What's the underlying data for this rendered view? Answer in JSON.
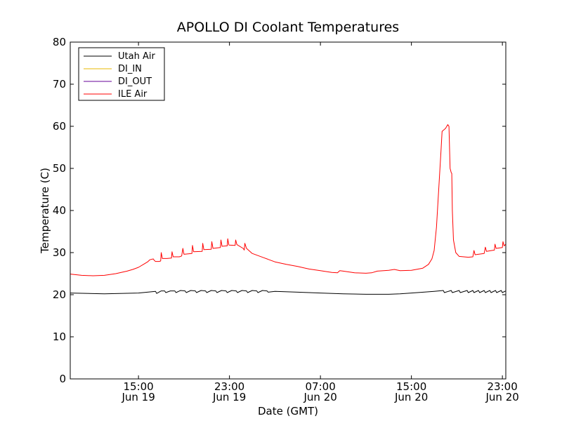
{
  "chart_data": {
    "type": "line",
    "title": "APOLLO DI Coolant Temperatures",
    "xlabel": "Date (GMT)",
    "ylabel": "Temperature (C)",
    "x_unit": "hours since Jun 19 09:00 GMT",
    "xlim": [
      0,
      38.3
    ],
    "ylim": [
      0,
      80
    ],
    "yticks": [
      0,
      10,
      20,
      30,
      40,
      50,
      60,
      70,
      80
    ],
    "xticks": [
      {
        "x": 6,
        "time": "15:00",
        "date": "Jun 19"
      },
      {
        "x": 14,
        "time": "23:00",
        "date": "Jun 19"
      },
      {
        "x": 22,
        "time": "07:00",
        "date": "Jun 20"
      },
      {
        "x": 30,
        "time": "15:00",
        "date": "Jun 20"
      },
      {
        "x": 38,
        "time": "23:00",
        "date": "Jun 20"
      }
    ],
    "legend_position": "top-left",
    "series": [
      {
        "name": "Utah Air",
        "color": "#000000",
        "points": [
          [
            0,
            20.4
          ],
          [
            3,
            20.2
          ],
          [
            6,
            20.4
          ],
          [
            7.5,
            20.8
          ],
          [
            7.6,
            20.3
          ],
          [
            8,
            20.9
          ],
          [
            8.3,
            20.9
          ],
          [
            8.4,
            20.5
          ],
          [
            8.8,
            20.9
          ],
          [
            9.2,
            20.9
          ],
          [
            9.3,
            20.5
          ],
          [
            9.7,
            21.0
          ],
          [
            10.1,
            20.9
          ],
          [
            10.2,
            20.5
          ],
          [
            10.6,
            21.0
          ],
          [
            11.0,
            20.9
          ],
          [
            11.1,
            20.5
          ],
          [
            11.5,
            21.0
          ],
          [
            11.9,
            20.9
          ],
          [
            12.0,
            20.5
          ],
          [
            12.4,
            21.0
          ],
          [
            12.8,
            20.9
          ],
          [
            12.9,
            20.5
          ],
          [
            13.3,
            21.0
          ],
          [
            13.7,
            20.9
          ],
          [
            13.8,
            20.5
          ],
          [
            14.2,
            21.0
          ],
          [
            14.6,
            20.9
          ],
          [
            14.7,
            20.5
          ],
          [
            15.1,
            21.0
          ],
          [
            15.5,
            20.9
          ],
          [
            15.6,
            20.5
          ],
          [
            16.0,
            21.0
          ],
          [
            16.4,
            20.9
          ],
          [
            16.5,
            20.5
          ],
          [
            16.9,
            21.0
          ],
          [
            17.3,
            20.9
          ],
          [
            17.4,
            20.6
          ],
          [
            18,
            20.8
          ],
          [
            20,
            20.6
          ],
          [
            22,
            20.4
          ],
          [
            24,
            20.2
          ],
          [
            26,
            20.1
          ],
          [
            28,
            20.1
          ],
          [
            29,
            20.2
          ],
          [
            30,
            20.4
          ],
          [
            32,
            20.8
          ],
          [
            32.8,
            21.0
          ],
          [
            32.9,
            20.5
          ],
          [
            33.5,
            21.0
          ],
          [
            33.6,
            20.5
          ],
          [
            34.2,
            21.0
          ],
          [
            34.3,
            20.5
          ],
          [
            34.9,
            21.0
          ],
          [
            35.0,
            20.5
          ],
          [
            35.4,
            21.0
          ],
          [
            35.5,
            20.5
          ],
          [
            35.9,
            21.0
          ],
          [
            36.0,
            20.5
          ],
          [
            36.4,
            21.0
          ],
          [
            36.5,
            20.5
          ],
          [
            36.9,
            21.0
          ],
          [
            37.0,
            20.5
          ],
          [
            37.4,
            21.0
          ],
          [
            37.5,
            20.5
          ],
          [
            37.9,
            21.0
          ],
          [
            38.0,
            20.5
          ],
          [
            38.3,
            20.9
          ]
        ]
      },
      {
        "name": "DI_IN",
        "color": "#e8b800",
        "points": []
      },
      {
        "name": "DI_OUT",
        "color": "#660099",
        "points": []
      },
      {
        "name": "ILE Air",
        "color": "#ff0000",
        "points": [
          [
            0,
            24.9
          ],
          [
            1,
            24.6
          ],
          [
            2,
            24.5
          ],
          [
            3,
            24.6
          ],
          [
            4,
            25.0
          ],
          [
            5,
            25.6
          ],
          [
            5.5,
            26.0
          ],
          [
            6,
            26.5
          ],
          [
            6.5,
            27.3
          ],
          [
            6.8,
            27.8
          ],
          [
            7.0,
            28.3
          ],
          [
            7.3,
            28.5
          ],
          [
            7.4,
            28.1
          ],
          [
            7.5,
            27.9
          ],
          [
            7.8,
            27.9
          ],
          [
            7.95,
            28.0
          ],
          [
            8.0,
            30.0
          ],
          [
            8.1,
            28.6
          ],
          [
            8.5,
            28.6
          ],
          [
            8.9,
            28.7
          ],
          [
            8.95,
            30.2
          ],
          [
            9.05,
            29.0
          ],
          [
            9.6,
            29.0
          ],
          [
            9.8,
            29.2
          ],
          [
            9.9,
            31.0
          ],
          [
            10.0,
            29.6
          ],
          [
            10.7,
            29.8
          ],
          [
            10.75,
            31.7
          ],
          [
            10.85,
            30.2
          ],
          [
            11.6,
            30.3
          ],
          [
            11.65,
            32.2
          ],
          [
            11.75,
            30.7
          ],
          [
            12.4,
            30.8
          ],
          [
            12.45,
            32.6
          ],
          [
            12.55,
            31.0
          ],
          [
            13.2,
            31.2
          ],
          [
            13.25,
            33.0
          ],
          [
            13.35,
            31.5
          ],
          [
            13.8,
            31.6
          ],
          [
            13.85,
            33.3
          ],
          [
            13.95,
            31.8
          ],
          [
            14.5,
            31.7
          ],
          [
            14.55,
            33.0
          ],
          [
            14.65,
            31.9
          ],
          [
            15.2,
            31.0
          ],
          [
            15.3,
            30.6
          ],
          [
            15.35,
            32.2
          ],
          [
            15.5,
            31.0
          ],
          [
            16,
            29.8
          ],
          [
            17,
            28.8
          ],
          [
            18,
            27.8
          ],
          [
            19,
            27.2
          ],
          [
            20,
            26.7
          ],
          [
            21,
            26.1
          ],
          [
            22,
            25.7
          ],
          [
            23,
            25.3
          ],
          [
            23.5,
            25.2
          ],
          [
            23.7,
            25.7
          ],
          [
            24,
            25.6
          ],
          [
            25,
            25.2
          ],
          [
            26,
            25.1
          ],
          [
            26.5,
            25.2
          ],
          [
            27,
            25.6
          ],
          [
            28,
            25.8
          ],
          [
            28.5,
            26.0
          ],
          [
            29,
            25.7
          ],
          [
            30,
            25.8
          ],
          [
            31,
            26.3
          ],
          [
            31.5,
            27.2
          ],
          [
            31.8,
            28.5
          ],
          [
            32.0,
            30.5
          ],
          [
            32.2,
            36
          ],
          [
            32.4,
            45
          ],
          [
            32.6,
            54
          ],
          [
            32.7,
            58.8
          ],
          [
            33.0,
            59.5
          ],
          [
            33.2,
            60.4
          ],
          [
            33.3,
            60.0
          ],
          [
            33.4,
            50
          ],
          [
            33.5,
            49.0
          ],
          [
            33.55,
            48.8
          ],
          [
            33.6,
            40
          ],
          [
            33.7,
            33
          ],
          [
            33.9,
            30.0
          ],
          [
            34.2,
            29.1
          ],
          [
            35,
            28.9
          ],
          [
            35.4,
            29.0
          ],
          [
            35.5,
            30.5
          ],
          [
            35.6,
            29.5
          ],
          [
            36.4,
            29.8
          ],
          [
            36.5,
            31.3
          ],
          [
            36.6,
            30.3
          ],
          [
            37.3,
            30.6
          ],
          [
            37.35,
            32.0
          ],
          [
            37.45,
            31.0
          ],
          [
            38.0,
            31.2
          ],
          [
            38.05,
            32.6
          ],
          [
            38.15,
            31.6
          ],
          [
            38.3,
            32.0
          ],
          [
            38.3,
            32.0
          ]
        ]
      }
    ]
  }
}
